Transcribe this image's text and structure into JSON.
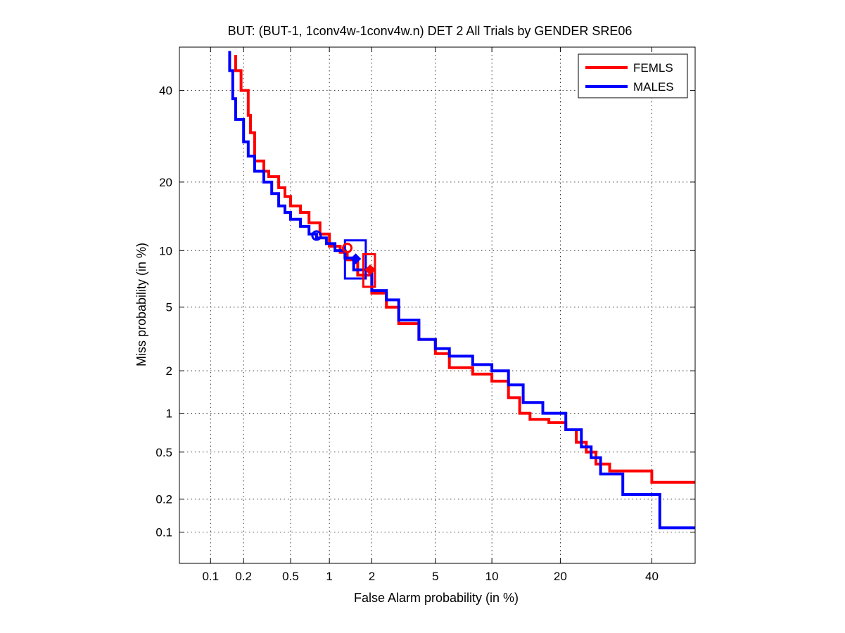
{
  "chart_data": {
    "type": "line",
    "title": "BUT: (BUT-1, 1conv4w-1conv4w.n) DET 2 All Trials by GENDER SRE06",
    "xlabel": "False Alarm probability (in %)",
    "ylabel": "Miss probability (in %)",
    "scale": "normal-deviate (probit)",
    "grid": true,
    "legend_position": "top-right",
    "xlim": [
      0.05,
      51
    ],
    "ylim": [
      0.05,
      51
    ],
    "xticks": [
      0.1,
      0.2,
      0.5,
      1,
      2,
      5,
      10,
      20,
      40
    ],
    "xtick_labels": [
      "0.1",
      "0.2",
      "0.5",
      "1",
      "2",
      "5",
      "10",
      "20",
      "40"
    ],
    "yticks": [
      0.1,
      0.2,
      0.5,
      1,
      2,
      5,
      10,
      20,
      40
    ],
    "ytick_labels": [
      "0.1",
      "0.2",
      "0.5",
      "1",
      "2",
      "5",
      "10",
      "20",
      "40"
    ],
    "series": [
      {
        "name": "FEMLS",
        "color": "#ff0000",
        "x": [
          0.17,
          0.19,
          0.22,
          0.23,
          0.25,
          0.3,
          0.33,
          0.4,
          0.45,
          0.5,
          0.6,
          0.7,
          0.85,
          1.0,
          1.2,
          1.35,
          1.6,
          2.0,
          2.5,
          3.0,
          4.0,
          5.0,
          6.0,
          8.0,
          10.0,
          12.0,
          13.5,
          15.0,
          18.0,
          21.0,
          23.0,
          25.0,
          27.0,
          30.0,
          40.0,
          50.0,
          51.0
        ],
        "y": [
          49,
          45,
          40,
          34,
          30,
          24,
          22,
          21,
          19,
          17.5,
          16,
          15,
          13.5,
          12,
          10.5,
          9.8,
          9.0,
          7.5,
          6.0,
          5.0,
          4.0,
          3.2,
          2.6,
          2.1,
          1.9,
          1.7,
          1.3,
          1.0,
          0.9,
          0.85,
          0.75,
          0.6,
          0.5,
          0.4,
          0.35,
          0.28,
          0.28
        ]
      },
      {
        "name": "MALES",
        "color": "#0000ff",
        "x": [
          0.15,
          0.16,
          0.17,
          0.2,
          0.22,
          0.25,
          0.3,
          0.35,
          0.4,
          0.45,
          0.5,
          0.6,
          0.7,
          0.8,
          0.95,
          1.1,
          1.3,
          1.5,
          2.0,
          2.5,
          3.0,
          4.0,
          5.0,
          6.0,
          8.0,
          10.0,
          12.0,
          14.0,
          17.0,
          21.0,
          24.0,
          26.0,
          28.0,
          33.0,
          42.0,
          51.0
        ],
        "y": [
          50,
          45,
          38,
          33,
          28,
          25,
          22,
          20,
          18,
          16,
          15,
          14,
          13,
          12,
          11.5,
          10.8,
          10.0,
          9.2,
          8.0,
          6.2,
          5.5,
          4.2,
          3.2,
          2.8,
          2.5,
          2.2,
          2.0,
          1.6,
          1.2,
          1.0,
          0.75,
          0.55,
          0.45,
          0.33,
          0.22,
          0.11
        ]
      }
    ],
    "markers": [
      {
        "series": "MALES",
        "shape": "circle",
        "x": 0.8,
        "y": 11.8
      },
      {
        "series": "MALES",
        "shape": "diamond",
        "x": 1.55,
        "y": 9.1
      },
      {
        "series": "FEMLS",
        "shape": "circle",
        "x": 1.35,
        "y": 10.3
      },
      {
        "series": "FEMLS",
        "shape": "diamond",
        "x": 1.95,
        "y": 8.0
      }
    ],
    "confidence_boxes": [
      {
        "series": "MALES",
        "x": [
          1.3,
          1.82
        ],
        "y": [
          7.2,
          11.2
        ]
      },
      {
        "series": "FEMLS",
        "x": [
          1.75,
          2.1
        ],
        "y": [
          6.5,
          9.6
        ]
      }
    ]
  }
}
